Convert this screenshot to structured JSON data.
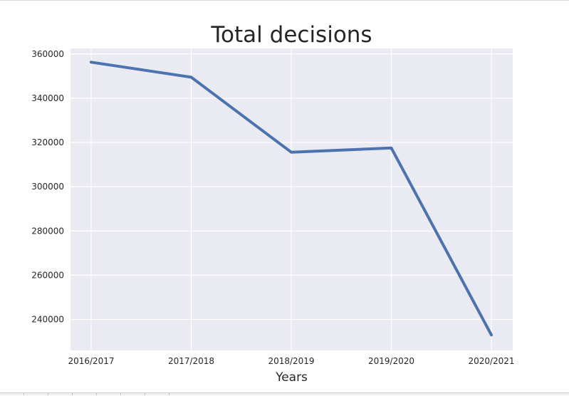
{
  "chart_data": {
    "type": "line",
    "title": "Total decisions",
    "xlabel": "Years",
    "ylabel": "",
    "categories": [
      "2016/2017",
      "2017/2018",
      "2018/2019",
      "2019/2020",
      "2020/2021"
    ],
    "series": [
      {
        "values": [
          356300,
          349500,
          315600,
          317500,
          233000
        ]
      }
    ],
    "ylim": [
      226000,
      362500
    ],
    "yticks": [
      240000,
      260000,
      280000,
      300000,
      320000,
      340000,
      360000
    ],
    "ytick_labels": [
      "240000",
      "260000",
      "280000",
      "300000",
      "320000",
      "340000",
      "360000"
    ],
    "grid": true,
    "legend": "none",
    "colors": {
      "line": "#4c72b0",
      "plot_background": "#eaeaf2",
      "grid": "#ffffff",
      "text": "#262626"
    }
  }
}
